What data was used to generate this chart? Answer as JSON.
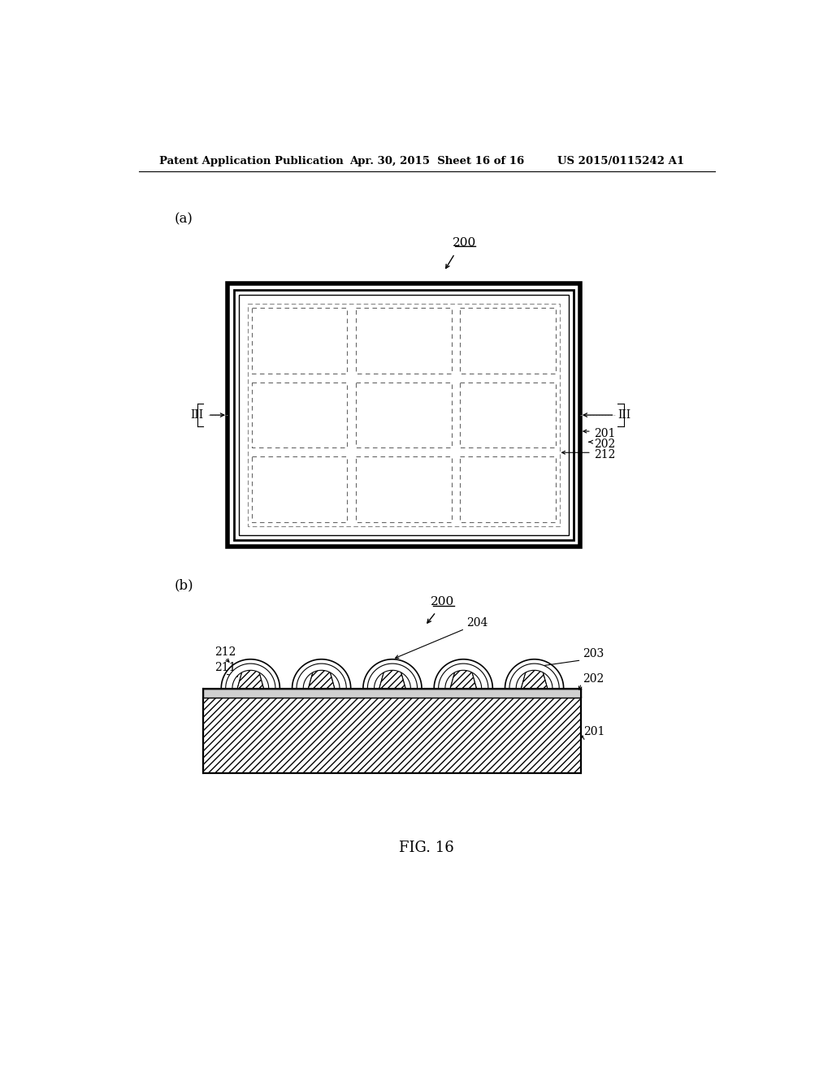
{
  "bg_color": "#ffffff",
  "header_left": "Patent Application Publication",
  "header_mid": "Apr. 30, 2015  Sheet 16 of 16",
  "header_right": "US 2015/0115242 A1",
  "fig_label": "FIG. 16",
  "label_a": "(a)",
  "label_b": "(b)",
  "ref_200": "200",
  "ref_201": "201",
  "ref_202": "202",
  "ref_203": "203",
  "ref_204": "204",
  "ref_211": "211",
  "ref_212": "212",
  "ref_III": "III"
}
